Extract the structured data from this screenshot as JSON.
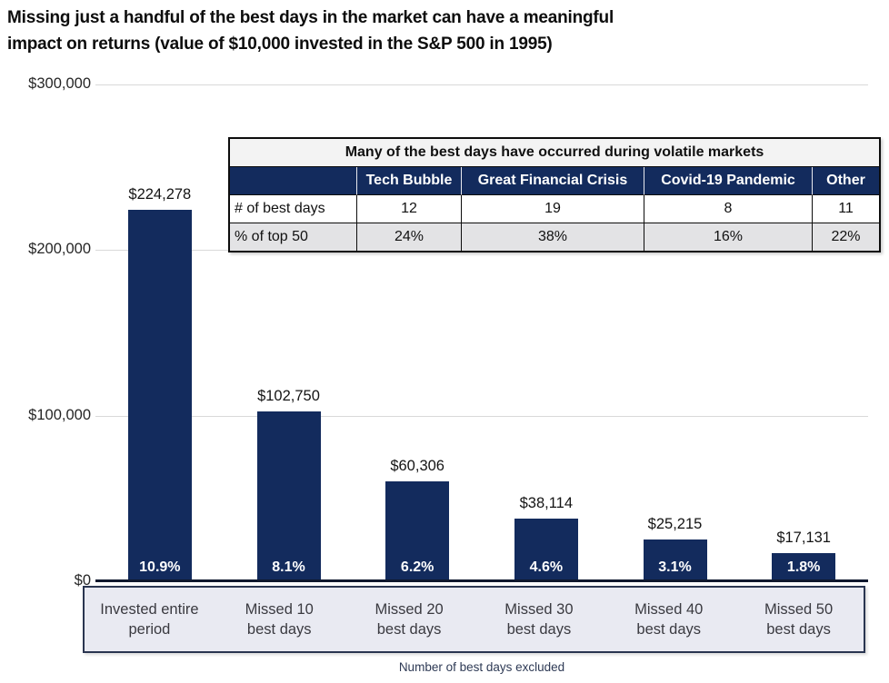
{
  "title": {
    "line1": "Missing just a handful of the best days in the market can have a meaningful",
    "line2": "impact on returns (value of $10,000 invested in the S&P 500 in 1995)"
  },
  "chart_data": {
    "type": "bar",
    "title": "Missing just a handful of the best days in the market can have a meaningful impact on returns (value of $10,000 invested in the S&P 500 in 1995)",
    "categories": [
      "Invested entire period",
      "Missed 10 best days",
      "Missed 20 best days",
      "Missed 30 best days",
      "Missed 40 best days",
      "Missed 50 best days"
    ],
    "values": [
      224278,
      102750,
      60306,
      38114,
      25215,
      17131
    ],
    "value_labels": [
      "$224,278",
      "$102,750",
      "$60,306",
      "$38,114",
      "$25,215",
      "$17,131"
    ],
    "bar_annotations": [
      "10.9%",
      "8.1%",
      "6.2%",
      "4.6%",
      "3.1%",
      "1.8%"
    ],
    "xlabel": "Number of best days excluded",
    "ylabel": "",
    "ylim": [
      0,
      300000
    ],
    "yticks": [
      {
        "value": 0,
        "label": "$0"
      },
      {
        "value": 100000,
        "label": "$100,000"
      },
      {
        "value": 200000,
        "label": "$200,000"
      },
      {
        "value": 300000,
        "label": "$300,000"
      }
    ],
    "grid": true,
    "legend": false,
    "bar_color": "#132b5d"
  },
  "info_table": {
    "title": "Many of the best days have occurred during volatile markets",
    "columns": [
      "",
      "Tech Bubble",
      "Great Financial Crisis",
      "Covid-19 Pandemic",
      "Other"
    ],
    "rows": [
      {
        "label": "# of best days",
        "values": [
          "12",
          "19",
          "8",
          "11"
        ]
      },
      {
        "label": "% of top 50",
        "values": [
          "24%",
          "38%",
          "16%",
          "22%"
        ]
      }
    ]
  },
  "colors": {
    "bar_navy": "#132b5d",
    "header_navy": "#132b5d",
    "gridline": "#d9d9d9",
    "category_box_bg": "#e9eaf2",
    "category_box_border": "#2a3550",
    "axis_line": "#10182e",
    "row_alt_bg": "#e3e3e5"
  }
}
